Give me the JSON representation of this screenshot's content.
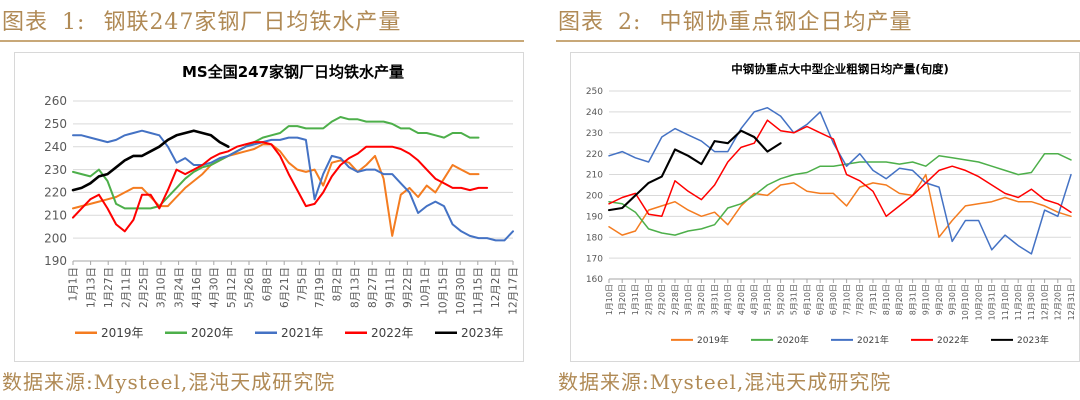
{
  "panels": [
    {
      "heading_prefix": "图表",
      "heading_number": "1:",
      "heading_text": "钢联247家钢厂日均铁水产量",
      "source": "数据来源:Mysteel,混沌天成研究院"
    },
    {
      "heading_prefix": "图表",
      "heading_number": "2:",
      "heading_text": "中钢协重点钢企日均产量",
      "source": "数据来源:Mysteel,混沌天成研究院"
    }
  ],
  "chart_data": [
    {
      "type": "line",
      "title": "MS全国247家钢厂日均铁水产量",
      "ylim": [
        190,
        260
      ],
      "yticks": [
        190,
        200,
        210,
        220,
        230,
        240,
        250,
        260
      ],
      "xticks": [
        "1月1日",
        "1月13日",
        "1月27日",
        "2月11日",
        "2月25日",
        "3月10日",
        "3月24日",
        "4月16日",
        "4月30日",
        "5月12日",
        "5月26日",
        "6月8日",
        "6月21日",
        "7月5日",
        "7月19日",
        "8月2日",
        "8月13日",
        "8月27日",
        "9月11日",
        "9月22日",
        "10月1日",
        "10月15日",
        "10月30日",
        "11月15日",
        "12月2日",
        "12月17日"
      ],
      "grid": true,
      "legend_position": "bottom",
      "colors": {
        "2019年": "#f47c20",
        "2020年": "#4daf4a",
        "2021年": "#4472c4",
        "2022年": "#ff0000",
        "2023年": "#000000"
      },
      "series": [
        {
          "name": "2019年",
          "values": [
            213,
            214,
            215,
            216,
            217,
            218,
            220,
            222,
            222,
            218,
            214,
            214,
            218,
            222,
            225,
            228,
            232,
            234,
            236,
            237,
            238,
            239,
            241,
            241,
            238,
            233,
            230,
            229,
            230,
            223,
            233,
            234,
            233,
            229,
            232,
            236,
            226,
            201,
            219,
            222,
            218,
            223,
            220,
            226,
            232,
            230,
            228,
            228
          ]
        },
        {
          "name": "2020年",
          "values": [
            229,
            228,
            227,
            230,
            225,
            215,
            213,
            213,
            213,
            213,
            214,
            218,
            222,
            226,
            229,
            231,
            232,
            234,
            236,
            238,
            240,
            242,
            244,
            245,
            246,
            249,
            249,
            248,
            248,
            248,
            251,
            253,
            252,
            252,
            251,
            251,
            251,
            250,
            248,
            248,
            246,
            246,
            245,
            244,
            246,
            246,
            244,
            244
          ]
        },
        {
          "name": "2021年",
          "values": [
            245,
            245,
            244,
            243,
            242,
            243,
            245,
            246,
            247,
            246,
            245,
            240,
            233,
            235,
            232,
            232,
            233,
            235,
            236,
            238,
            240,
            241,
            242,
            243,
            243,
            244,
            244,
            243,
            217,
            228,
            236,
            235,
            231,
            229,
            230,
            230,
            228,
            228,
            224,
            220,
            211,
            214,
            216,
            214,
            206,
            203,
            201,
            200,
            200,
            199,
            199,
            203
          ]
        },
        {
          "name": "2022年",
          "values": [
            209,
            213,
            217,
            219,
            213,
            206,
            203,
            208,
            219,
            219,
            213,
            221,
            230,
            228,
            230,
            232,
            235,
            237,
            238,
            240,
            241,
            242,
            242,
            241,
            236,
            228,
            221,
            214,
            215,
            220,
            227,
            232,
            235,
            237,
            240,
            240,
            240,
            240,
            239,
            237,
            234,
            230,
            226,
            224,
            222,
            222,
            221,
            222,
            222
          ]
        },
        {
          "name": "2023年",
          "values": [
            221,
            222,
            224,
            227,
            228,
            231,
            234,
            236,
            236,
            238,
            240,
            243,
            245,
            246,
            247,
            246,
            245,
            242,
            240
          ]
        }
      ]
    },
    {
      "type": "line",
      "title": "中钢协重点大中型企业粗钢日均产量(旬度)",
      "ylim": [
        160,
        250
      ],
      "yticks": [
        160,
        170,
        180,
        190,
        200,
        210,
        220,
        230,
        240,
        250
      ],
      "xticks": [
        "1月10日",
        "1月20日",
        "1月31日",
        "2月10日",
        "2月20日",
        "2月28日",
        "3月10日",
        "3月20日",
        "3月31日",
        "4月10日",
        "4月20日",
        "4月30日",
        "5月10日",
        "5月20日",
        "5月31日",
        "6月10日",
        "6月20日",
        "6月30日",
        "7月10日",
        "7月20日",
        "7月31日",
        "8月10日",
        "8月20日",
        "8月31日",
        "9月10日",
        "9月20日",
        "9月30日",
        "10月10日",
        "10月20日",
        "10月31日",
        "11月10日",
        "11月20日",
        "11月30日",
        "12月10日",
        "12月20日",
        "12月31日"
      ],
      "grid": true,
      "legend_position": "bottom",
      "colors": {
        "2019年": "#f47c20",
        "2020年": "#4daf4a",
        "2021年": "#4472c4",
        "2022年": "#ff0000",
        "2023年": "#000000"
      },
      "series": [
        {
          "name": "2019年",
          "values": [
            185,
            181,
            183,
            193,
            195,
            197,
            193,
            190,
            192,
            186,
            195,
            201,
            200,
            205,
            206,
            202,
            201,
            201,
            195,
            204,
            206,
            205,
            201,
            200,
            210,
            180,
            188,
            195,
            196,
            197,
            199,
            197,
            197,
            195,
            192,
            190
          ]
        },
        {
          "name": "2020年",
          "values": [
            197,
            196,
            192,
            184,
            182,
            181,
            183,
            184,
            186,
            194,
            196,
            200,
            205,
            208,
            210,
            211,
            214,
            214,
            215,
            216,
            216,
            216,
            215,
            216,
            214,
            219,
            218,
            217,
            216,
            214,
            212,
            210,
            211,
            220,
            220,
            217
          ]
        },
        {
          "name": "2021年",
          "values": [
            219,
            221,
            218,
            216,
            228,
            232,
            229,
            226,
            221,
            221,
            232,
            240,
            242,
            238,
            230,
            234,
            240,
            225,
            214,
            220,
            212,
            208,
            213,
            212,
            206,
            204,
            178,
            188,
            188,
            174,
            181,
            176,
            172,
            193,
            190,
            210
          ]
        },
        {
          "name": "2022年",
          "values": [
            196,
            199,
            201,
            191,
            190,
            207,
            202,
            198,
            205,
            216,
            223,
            225,
            236,
            231,
            230,
            233,
            230,
            227,
            210,
            207,
            202,
            190,
            195,
            200,
            206,
            212,
            214,
            212,
            209,
            205,
            201,
            199,
            203,
            198,
            196,
            192
          ]
        },
        {
          "name": "2023年",
          "values": [
            193,
            194,
            200,
            206,
            209,
            222,
            219,
            215,
            226,
            225,
            231,
            228,
            221,
            225
          ]
        }
      ]
    }
  ]
}
